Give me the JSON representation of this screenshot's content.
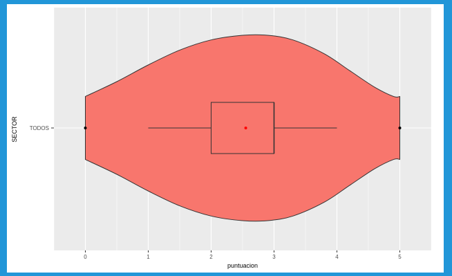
{
  "frame_color": "#2196d8",
  "chart_data": {
    "type": "violin",
    "orientation": "horizontal",
    "xlabel": "puntuacion",
    "ylabel": "SECTOR",
    "category": "TODOS",
    "xlim": [
      -0.5,
      5.5
    ],
    "xticks": [
      "0",
      "1",
      "2",
      "3",
      "4",
      "5"
    ],
    "fill_color": "#f8766d",
    "mean_color": "#ff0000",
    "panel_background": "#ebebeb",
    "grid": true,
    "violin_density": [
      [
        0.0,
        0.34
      ],
      [
        0.5,
        0.5
      ],
      [
        1.0,
        0.68
      ],
      [
        1.5,
        0.84
      ],
      [
        2.0,
        0.95
      ],
      [
        2.5,
        1.0
      ],
      [
        2.9,
        1.0
      ],
      [
        3.3,
        0.95
      ],
      [
        3.8,
        0.8
      ],
      [
        4.2,
        0.62
      ],
      [
        4.6,
        0.44
      ],
      [
        4.9,
        0.34
      ],
      [
        5.0,
        0.34
      ]
    ],
    "boxplot": {
      "min": 1,
      "q1": 2,
      "median": 3,
      "q3": 3,
      "max": 4,
      "mean": 2.55,
      "outliers": [
        0,
        5
      ]
    }
  }
}
